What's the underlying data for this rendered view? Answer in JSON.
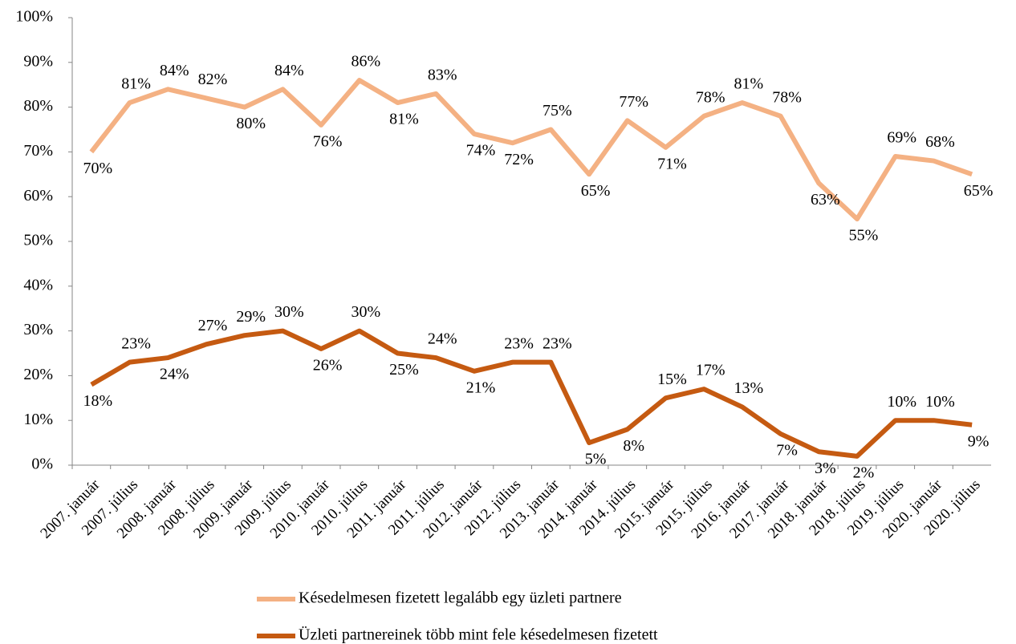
{
  "chart_data": {
    "type": "line",
    "categories": [
      "2007. január",
      "2007. július",
      "2008. január",
      "2008. július",
      "2009. január",
      "2009. július",
      "2010. január",
      "2010. július",
      "2011. január",
      "2011. július",
      "2012. január",
      "2012. július",
      "2013. január",
      "2014. január",
      "2014. július",
      "2015. január",
      "2015. július",
      "2016. január",
      "2017. január",
      "2018. január",
      "2018. július",
      "2019. július",
      "2020. január",
      "2020. július"
    ],
    "series": [
      {
        "name": "Késedelmesen fizetett legalább egy üzleti partnere",
        "color": "#f4b183",
        "values": [
          70,
          81,
          84,
          82,
          80,
          84,
          76,
          86,
          81,
          83,
          74,
          72,
          75,
          65,
          77,
          71,
          78,
          81,
          78,
          63,
          55,
          69,
          68,
          65
        ],
        "value_labels": [
          "70%",
          "81%",
          "84%",
          "82%",
          "80%",
          "84%",
          "76%",
          "86%",
          "81%",
          "83%",
          "74%",
          "72%",
          "75%",
          "65%",
          "77%",
          "71%",
          "78%",
          "81%",
          "78%",
          "63%",
          "55%",
          "69%",
          "68%",
          "65%"
        ]
      },
      {
        "name": "Üzleti partnereinek több mint fele késedelmesen fizetett",
        "color": "#c55a11",
        "values": [
          18,
          23,
          24,
          27,
          29,
          30,
          26,
          30,
          25,
          24,
          21,
          23,
          23,
          5,
          8,
          15,
          17,
          13,
          7,
          3,
          2,
          10,
          10,
          9
        ],
        "value_labels": [
          "18%",
          "23%",
          "24%",
          "27%",
          "29%",
          "30%",
          "26%",
          "30%",
          "25%",
          "24%",
          "21%",
          "23%",
          "23%",
          "5%",
          "8%",
          "15%",
          "17%",
          "13%",
          "7%",
          "3%",
          "2%",
          "10%",
          "10%",
          "9%"
        ]
      }
    ],
    "ylim": [
      0,
      100
    ],
    "yticks": [
      {
        "value": 0,
        "label": "0%"
      },
      {
        "value": 10,
        "label": "10%"
      },
      {
        "value": 20,
        "label": "20%"
      },
      {
        "value": 30,
        "label": "30%"
      },
      {
        "value": 40,
        "label": "40%"
      },
      {
        "value": 50,
        "label": "50%"
      },
      {
        "value": 60,
        "label": "60%"
      },
      {
        "value": 70,
        "label": "70%"
      },
      {
        "value": 80,
        "label": "80%"
      },
      {
        "value": 90,
        "label": "90%"
      },
      {
        "value": 100,
        "label": "100%"
      }
    ],
    "grid": false,
    "legend": "bottom"
  }
}
